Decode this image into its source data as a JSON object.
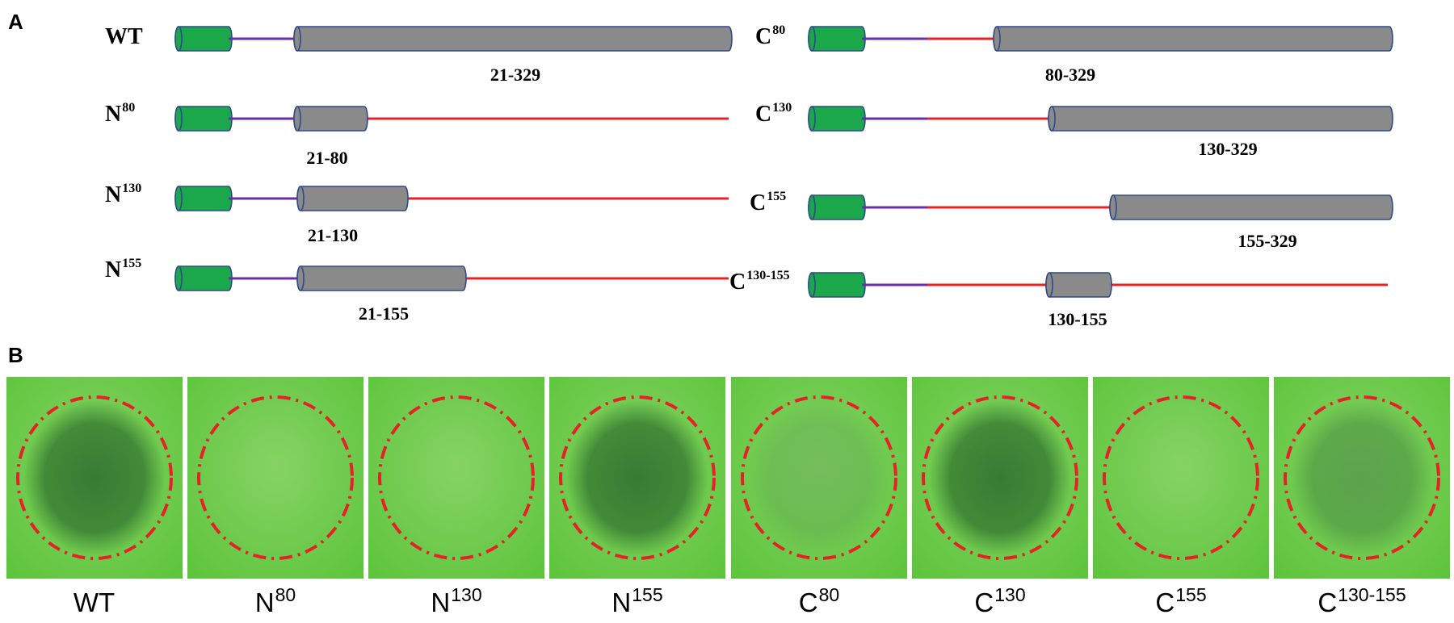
{
  "panels": {
    "a": "A",
    "b": "B"
  },
  "constructs": {
    "left": [
      {
        "id": "wt",
        "base": "WT",
        "sup": "",
        "range": "21-329"
      },
      {
        "id": "n80",
        "base": "N",
        "sup": "80",
        "range": "21-80"
      },
      {
        "id": "n130",
        "base": "N",
        "sup": "130",
        "range": "21-130"
      },
      {
        "id": "n155",
        "base": "N",
        "sup": "155",
        "range": "21-155"
      }
    ],
    "right": [
      {
        "id": "c80",
        "base": "C",
        "sup": "80",
        "range": "80-329"
      },
      {
        "id": "c130",
        "base": "C",
        "sup": "130",
        "range": "130-329"
      },
      {
        "id": "c155",
        "base": "C",
        "sup": "155",
        "range": "155-329"
      },
      {
        "id": "c130155",
        "base": "C",
        "sup": "130-155",
        "range": "130-155"
      }
    ]
  },
  "photos": [
    {
      "id": "wt",
      "base": "WT",
      "sup": "",
      "lesion": "strong"
    },
    {
      "id": "n80",
      "base": "N",
      "sup": "80",
      "lesion": "none"
    },
    {
      "id": "n130",
      "base": "N",
      "sup": "130",
      "lesion": "none"
    },
    {
      "id": "n155",
      "base": "N",
      "sup": "155",
      "lesion": "strong"
    },
    {
      "id": "c80",
      "base": "C",
      "sup": "80",
      "lesion": "weak"
    },
    {
      "id": "c130",
      "base": "C",
      "sup": "130",
      "lesion": "strong"
    },
    {
      "id": "c155",
      "base": "C",
      "sup": "155",
      "lesion": "none"
    },
    {
      "id": "c130155",
      "base": "C",
      "sup": "130-155",
      "lesion": "medium"
    }
  ],
  "colors": {
    "signal_peptide": "#1aa84a",
    "linker": "#6a2fa8",
    "deleted": "#e8202a",
    "domain": "#8a8a8a",
    "domain_edge": "#2f4a8a",
    "circle": "#e8202a",
    "leaf": "#5cc43a"
  }
}
